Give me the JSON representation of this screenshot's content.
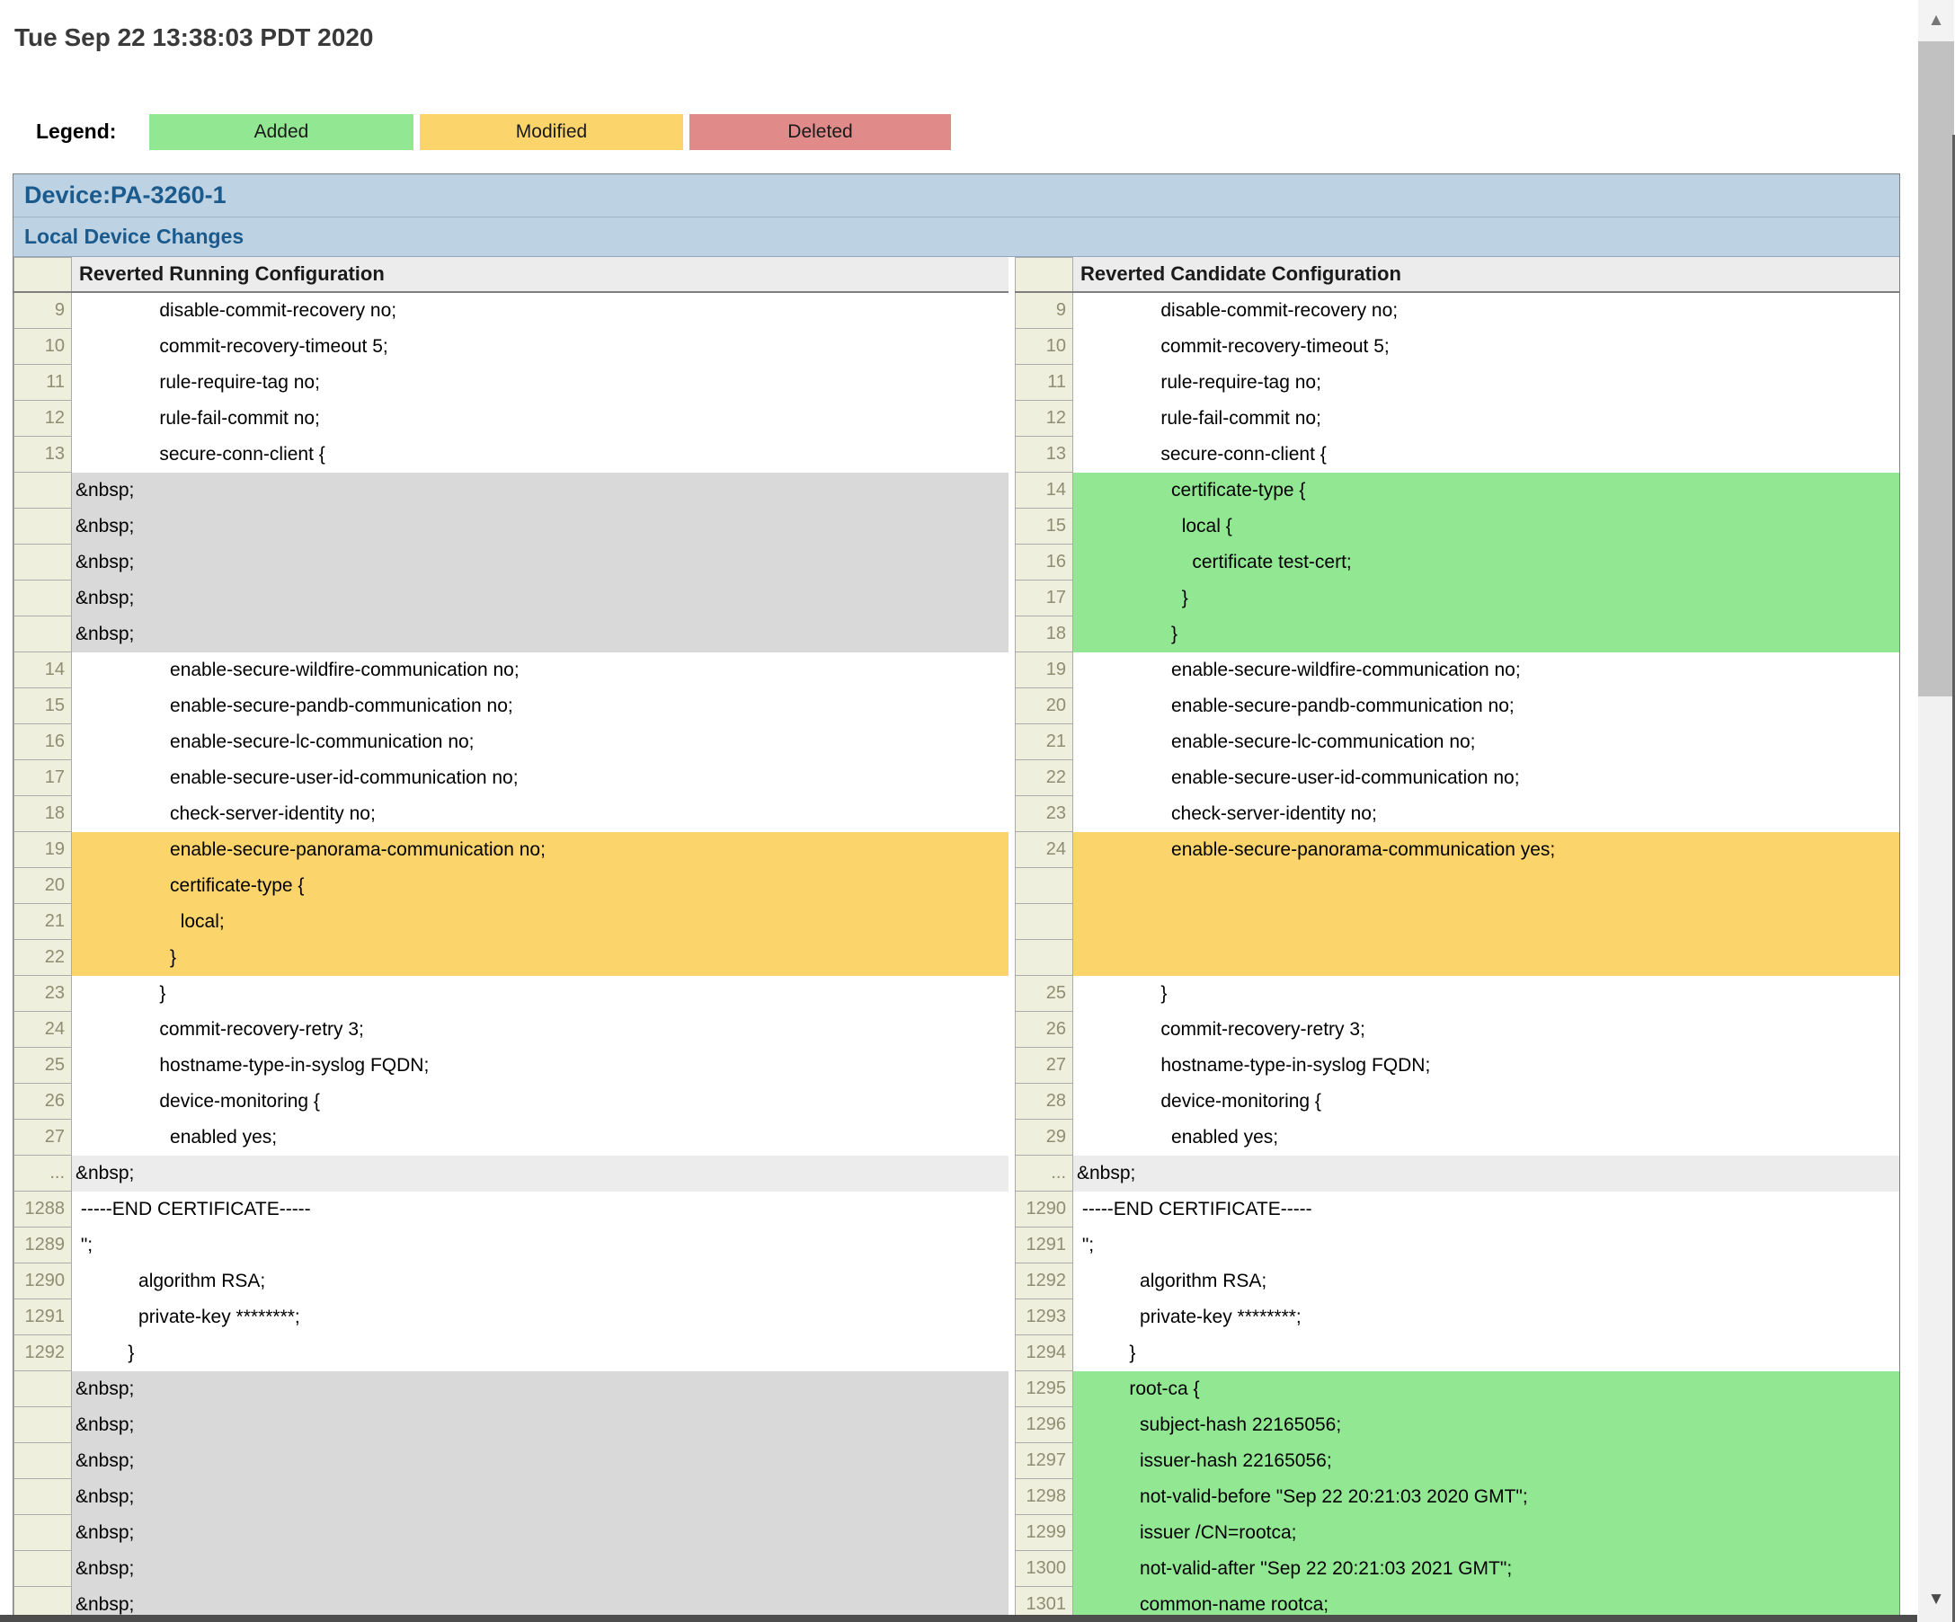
{
  "timestamp": "Tue Sep 22 13:38:03 PDT 2020",
  "legend": {
    "label": "Legend:",
    "items": [
      {
        "label": "Added",
        "color": "#92e892"
      },
      {
        "label": "Modified",
        "color": "#fbd46b"
      },
      {
        "label": "Deleted",
        "color": "#e18a8a"
      }
    ]
  },
  "device": {
    "title": "Device:PA-3260-1",
    "section": "Local Device Changes"
  },
  "columns": {
    "left": "Reverted Running Configuration",
    "right": "Reverted Candidate Configuration"
  },
  "colors": {
    "added": "#92e892",
    "modified": "#fbd46b",
    "deleted": "#e18a8a",
    "header_band": "#bdd2e3",
    "filler": "#d9d9d9"
  },
  "scrollbar": {
    "up_icon": "▲",
    "down_icon": "▼"
  },
  "left_rows": [
    {
      "num": "9",
      "text": "                disable-commit-recovery no;",
      "type": "normal"
    },
    {
      "num": "10",
      "text": "                commit-recovery-timeout 5;",
      "type": "normal"
    },
    {
      "num": "11",
      "text": "                rule-require-tag no;",
      "type": "normal"
    },
    {
      "num": "12",
      "text": "                rule-fail-commit no;",
      "type": "normal"
    },
    {
      "num": "13",
      "text": "                secure-conn-client {",
      "type": "normal"
    },
    {
      "num": "",
      "text": "&nbsp;",
      "type": "filler"
    },
    {
      "num": "",
      "text": "&nbsp;",
      "type": "filler"
    },
    {
      "num": "",
      "text": "&nbsp;",
      "type": "filler"
    },
    {
      "num": "",
      "text": "&nbsp;",
      "type": "filler"
    },
    {
      "num": "",
      "text": "&nbsp;",
      "type": "filler"
    },
    {
      "num": "14",
      "text": "                  enable-secure-wildfire-communication no;",
      "type": "normal"
    },
    {
      "num": "15",
      "text": "                  enable-secure-pandb-communication no;",
      "type": "normal"
    },
    {
      "num": "16",
      "text": "                  enable-secure-lc-communication no;",
      "type": "normal"
    },
    {
      "num": "17",
      "text": "                  enable-secure-user-id-communication no;",
      "type": "normal"
    },
    {
      "num": "18",
      "text": "                  check-server-identity no;",
      "type": "normal"
    },
    {
      "num": "19",
      "text": "                  enable-secure-panorama-communication no;",
      "type": "modified"
    },
    {
      "num": "20",
      "text": "                  certificate-type {",
      "type": "modified"
    },
    {
      "num": "21",
      "text": "                    local;",
      "type": "modified"
    },
    {
      "num": "22",
      "text": "                  }",
      "type": "modified"
    },
    {
      "num": "23",
      "text": "                }",
      "type": "normal"
    },
    {
      "num": "24",
      "text": "                commit-recovery-retry 3;",
      "type": "normal"
    },
    {
      "num": "25",
      "text": "                hostname-type-in-syslog FQDN;",
      "type": "normal"
    },
    {
      "num": "26",
      "text": "                device-monitoring {",
      "type": "normal"
    },
    {
      "num": "27",
      "text": "                  enabled yes;",
      "type": "normal"
    },
    {
      "num": "...",
      "text": "&nbsp;",
      "type": "separator"
    },
    {
      "num": "1288",
      "text": " -----END CERTIFICATE-----",
      "type": "normal"
    },
    {
      "num": "1289",
      "text": " \";",
      "type": "normal"
    },
    {
      "num": "1290",
      "text": "            algorithm RSA;",
      "type": "normal"
    },
    {
      "num": "1291",
      "text": "            private-key ********;",
      "type": "normal"
    },
    {
      "num": "1292",
      "text": "          }",
      "type": "normal"
    },
    {
      "num": "",
      "text": "&nbsp;",
      "type": "filler"
    },
    {
      "num": "",
      "text": "&nbsp;",
      "type": "filler"
    },
    {
      "num": "",
      "text": "&nbsp;",
      "type": "filler"
    },
    {
      "num": "",
      "text": "&nbsp;",
      "type": "filler"
    },
    {
      "num": "",
      "text": "&nbsp;",
      "type": "filler"
    },
    {
      "num": "",
      "text": "&nbsp;",
      "type": "filler"
    },
    {
      "num": "",
      "text": "&nbsp;",
      "type": "filler"
    }
  ],
  "right_rows": [
    {
      "num": "9",
      "text": "                disable-commit-recovery no;",
      "type": "normal"
    },
    {
      "num": "10",
      "text": "                commit-recovery-timeout 5;",
      "type": "normal"
    },
    {
      "num": "11",
      "text": "                rule-require-tag no;",
      "type": "normal"
    },
    {
      "num": "12",
      "text": "                rule-fail-commit no;",
      "type": "normal"
    },
    {
      "num": "13",
      "text": "                secure-conn-client {",
      "type": "normal"
    },
    {
      "num": "14",
      "text": "                  certificate-type {",
      "type": "added"
    },
    {
      "num": "15",
      "text": "                    local {",
      "type": "added"
    },
    {
      "num": "16",
      "text": "                      certificate test-cert;",
      "type": "added"
    },
    {
      "num": "17",
      "text": "                    }",
      "type": "added"
    },
    {
      "num": "18",
      "text": "                  }",
      "type": "added"
    },
    {
      "num": "19",
      "text": "                  enable-secure-wildfire-communication no;",
      "type": "normal"
    },
    {
      "num": "20",
      "text": "                  enable-secure-pandb-communication no;",
      "type": "normal"
    },
    {
      "num": "21",
      "text": "                  enable-secure-lc-communication no;",
      "type": "normal"
    },
    {
      "num": "22",
      "text": "                  enable-secure-user-id-communication no;",
      "type": "normal"
    },
    {
      "num": "23",
      "text": "                  check-server-identity no;",
      "type": "normal"
    },
    {
      "num": "24",
      "text": "                  enable-secure-panorama-communication yes;",
      "type": "modified"
    },
    {
      "num": "",
      "text": "",
      "type": "modified_empty"
    },
    {
      "num": "",
      "text": "",
      "type": "modified_empty"
    },
    {
      "num": "",
      "text": "",
      "type": "modified_empty"
    },
    {
      "num": "25",
      "text": "                }",
      "type": "normal"
    },
    {
      "num": "26",
      "text": "                commit-recovery-retry 3;",
      "type": "normal"
    },
    {
      "num": "27",
      "text": "                hostname-type-in-syslog FQDN;",
      "type": "normal"
    },
    {
      "num": "28",
      "text": "                device-monitoring {",
      "type": "normal"
    },
    {
      "num": "29",
      "text": "                  enabled yes;",
      "type": "normal"
    },
    {
      "num": "...",
      "text": "&nbsp;",
      "type": "separator"
    },
    {
      "num": "1290",
      "text": " -----END CERTIFICATE-----",
      "type": "normal"
    },
    {
      "num": "1291",
      "text": " \";",
      "type": "normal"
    },
    {
      "num": "1292",
      "text": "            algorithm RSA;",
      "type": "normal"
    },
    {
      "num": "1293",
      "text": "            private-key ********;",
      "type": "normal"
    },
    {
      "num": "1294",
      "text": "          }",
      "type": "normal"
    },
    {
      "num": "1295",
      "text": "          root-ca {",
      "type": "added"
    },
    {
      "num": "1296",
      "text": "            subject-hash 22165056;",
      "type": "added"
    },
    {
      "num": "1297",
      "text": "            issuer-hash 22165056;",
      "type": "added"
    },
    {
      "num": "1298",
      "text": "            not-valid-before \"Sep 22 20:21:03 2020 GMT\";",
      "type": "added"
    },
    {
      "num": "1299",
      "text": "            issuer /CN=rootca;",
      "type": "added"
    },
    {
      "num": "1300",
      "text": "            not-valid-after \"Sep 22 20:21:03 2021 GMT\";",
      "type": "added"
    },
    {
      "num": "1301",
      "text": "            common-name rootca;",
      "type": "added"
    }
  ]
}
